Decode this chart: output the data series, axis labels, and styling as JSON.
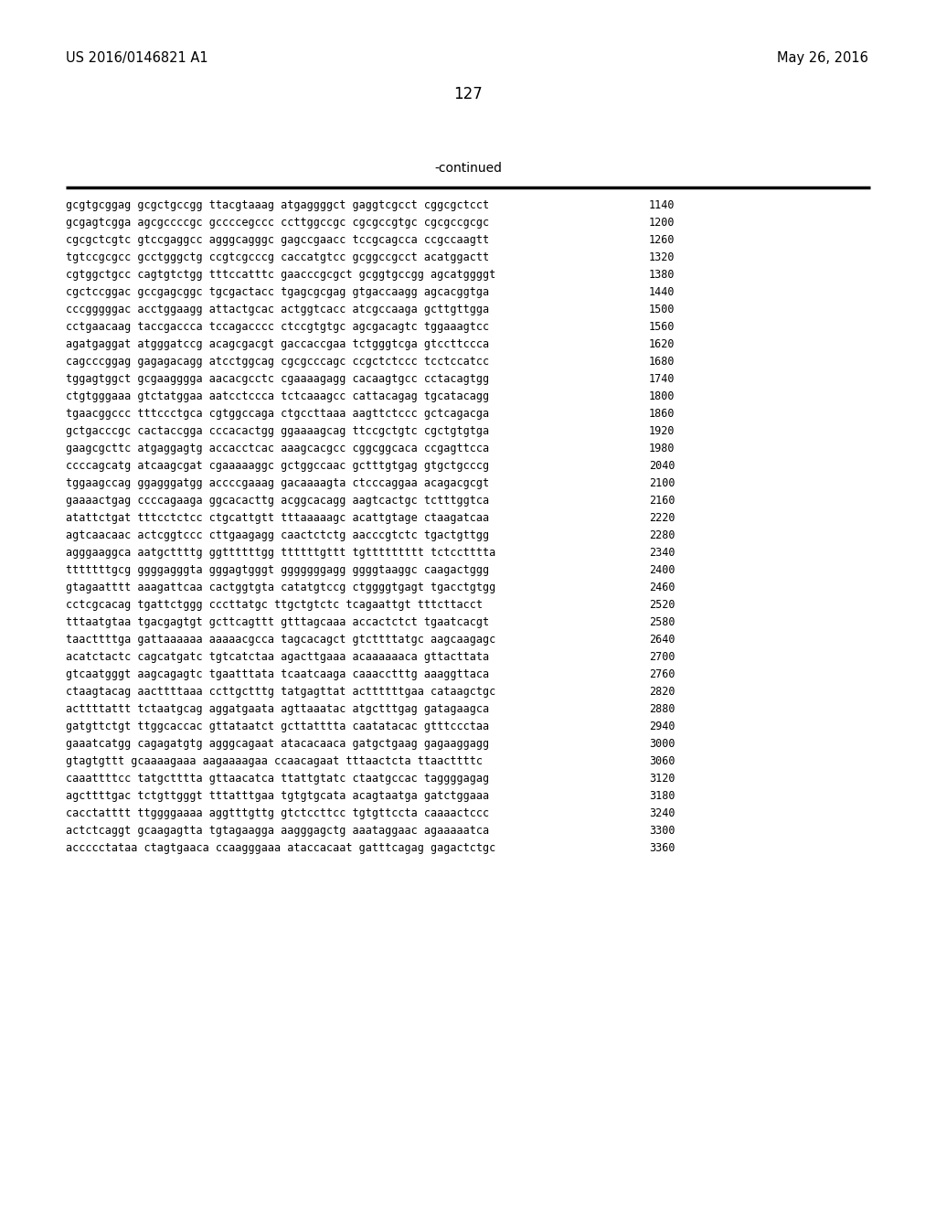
{
  "header_left": "US 2016/0146821 A1",
  "header_right": "May 26, 2016",
  "page_number": "127",
  "continued_label": "-continued",
  "background_color": "#ffffff",
  "text_color": "#000000",
  "header_fontsize": 10.5,
  "page_num_fontsize": 12,
  "continued_fontsize": 10,
  "seq_fontsize": 8.5,
  "num_fontsize": 8.5,
  "seq_lines": [
    [
      "gcgtgcggag gcgctgccgg ttacgtaaag atgaggggct gaggtcgcct cggcgctcct",
      "1140"
    ],
    [
      "gcgagtcgga agcgccccgc gccccegccc ccttggccgc cgcgccgtgc cgcgccgcgc",
      "1200"
    ],
    [
      "cgcgctcgtc gtccgaggcc agggcagggc gagccgaacc tccgcagcca ccgccaagtt",
      "1260"
    ],
    [
      "tgtccgcgcc gcctgggctg ccgtcgcccg caccatgtcc gcggccgcct acatggactt",
      "1320"
    ],
    [
      "cgtggctgcc cagtgtctgg tttccatttc gaacccgcgct gcggtgccgg agcatggggt",
      "1380"
    ],
    [
      "cgctccggac gccgagcggc tgcgactacc tgagcgcgag gtgaccaagg agcacggtga",
      "1440"
    ],
    [
      "cccgggggac acctggaagg attactgcac actggtcacc atcgccaaga gcttgttgga",
      "1500"
    ],
    [
      "cctgaacaag taccgaccca tccagacccc ctccgtgtgc agcgacagtc tggaaagtcc",
      "1560"
    ],
    [
      "agatgaggat atgggatccg acagcgacgt gaccaccgaa tctgggtcga gtccttccca",
      "1620"
    ],
    [
      "cagcccggag gagagacagg atcctggcag cgcgcccagc ccgctctccc tcctccatcc",
      "1680"
    ],
    [
      "tggagtggct gcgaagggga aacacgcctc cgaaaagagg cacaagtgcc cctacagtgg",
      "1740"
    ],
    [
      "ctgtgggaaa gtctatggaa aatcctccca tctcaaagcc cattacagag tgcatacagg",
      "1800"
    ],
    [
      "tgaacggccc tttccctgca cgtggccaga ctgccttaaa aagttctccc gctcagacga",
      "1860"
    ],
    [
      "gctgacccgc cactaccgga cccacactgg ggaaaagcag ttccgctgtc cgctgtgtga",
      "1920"
    ],
    [
      "gaagcgcttc atgaggagtg accacctcac aaagcacgcc cggcggcaca ccgagttcca",
      "1980"
    ],
    [
      "ccccagcatg atcaagcgat cgaaaaaggc gctggccaac gctttgtgag gtgctgcccg",
      "2040"
    ],
    [
      "tggaagccag ggagggatgg accccgaaag gacaaaagta ctcccaggaa acagacgcgt",
      "2100"
    ],
    [
      "gaaaactgag ccccagaaga ggcacacttg acggcacagg aagtcactgc tctttggtca",
      "2160"
    ],
    [
      "atattctgat tttcctctcc ctgcattgtt tttaaaaagc acattgtage ctaagatcaa",
      "2220"
    ],
    [
      "agtcaacaac actcggtccc cttgaagagg caactctctg aacccgtctc tgactgttgg",
      "2280"
    ],
    [
      "agggaaggca aatgcttttg ggttttttgg ttttttgttt tgttttttttt tctcctttta",
      "2340"
    ],
    [
      "tttttttgcg ggggagggta gggagtgggt gggggggagg ggggtaaggc caagactggg",
      "2400"
    ],
    [
      "gtagaatttt aaagattcaa cactggtgta catatgtccg ctggggtgagt tgacctgtgg",
      "2460"
    ],
    [
      "cctcgcacag tgattctggg cccttatgc ttgctgtctc tcagaattgt tttcttacct",
      "2520"
    ],
    [
      "tttaatgtaa tgacgagtgt gcttcagttt gtttagcaaa accactctct tgaatcacgt",
      "2580"
    ],
    [
      "taacttttga gattaaaaaa aaaaacgcca tagcacagct gtcttttatgc aagcaagagc",
      "2640"
    ],
    [
      "acatctactc cagcatgatc tgtcatctaa agacttgaaa acaaaaaaca gttacttata",
      "2700"
    ],
    [
      "gtcaatgggt aagcagagtc tgaatttata tcaatcaaga caaacctttg aaaggttaca",
      "2760"
    ],
    [
      "ctaagtacag aacttttaaa ccttgctttg tatgagttat acttttttgaa cataagctgc",
      "2820"
    ],
    [
      "acttttattt tctaatgcag aggatgaata agttaaatac atgctttgag gatagaagca",
      "2880"
    ],
    [
      "gatgttctgt ttggcaccac gttataatct gcttatttta caatatacac gtttccctaa",
      "2940"
    ],
    [
      "gaaatcatgg cagagatgtg agggcagaat atacacaaca gatgctgaag gagaaggagg",
      "3000"
    ],
    [
      "gtagtgttt gcaaaagaaa aagaaaagaa ccaacagaat tttaactcta ttaacttttc",
      "3060"
    ],
    [
      "caaattttcc tatgctttta gttaacatca ttattgtatc ctaatgccac taggggagag",
      "3120"
    ],
    [
      "agcttttgac tctgttgggt tttatttgaa tgtgtgcata acagtaatga gatctggaaa",
      "3180"
    ],
    [
      "cacctatttt ttggggaaaa aggtttgttg gtctccttcc tgtgttccta caaaactccc",
      "3240"
    ],
    [
      "actctcaggt gcaagagtta tgtagaagga aagggagctg aaataggaac agaaaaatca",
      "3300"
    ],
    [
      "accccctataa ctagtgaaca ccaagggaaa ataccacaat gatttcagag gagactctgc",
      "3360"
    ]
  ]
}
